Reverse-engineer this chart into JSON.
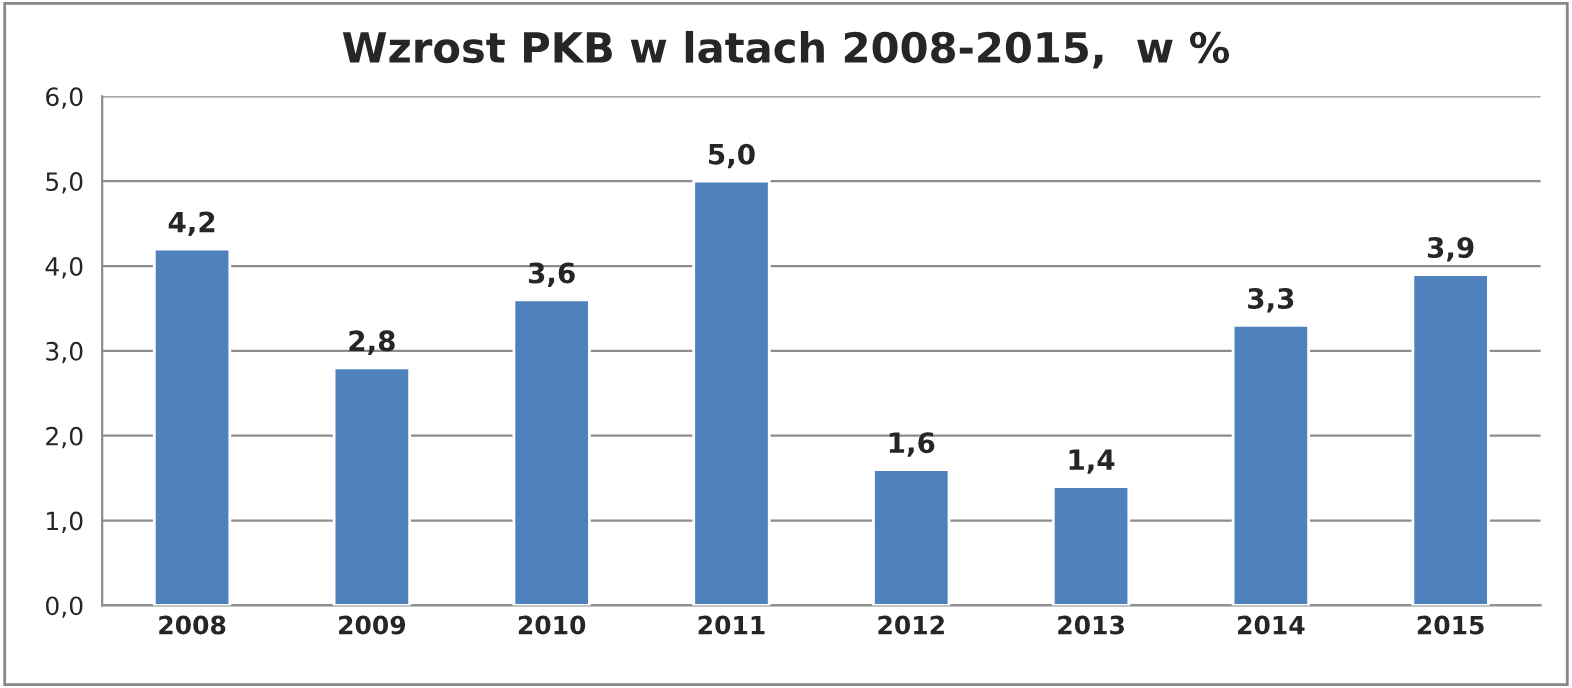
{
  "chart_data": {
    "type": "bar",
    "title": "Wzrost PKB w latach 2008-2015,  w %",
    "categories": [
      "2008",
      "2009",
      "2010",
      "2011",
      "2012",
      "2013",
      "2014",
      "2015"
    ],
    "values": [
      4.2,
      2.8,
      3.6,
      5.0,
      1.6,
      1.4,
      3.3,
      3.9
    ],
    "value_labels": [
      "4,2",
      "2,8",
      "3,6",
      "5,0",
      "1,6",
      "1,4",
      "3,3",
      "3,9"
    ],
    "color": "#4f81bd",
    "ylim": [
      0,
      6
    ],
    "yticks": [
      {
        "value": 0,
        "label": "0,0"
      },
      {
        "value": 1,
        "label": "1,0"
      },
      {
        "value": 2,
        "label": "2,0"
      },
      {
        "value": 3,
        "label": "3,0"
      },
      {
        "value": 4,
        "label": "4,0"
      },
      {
        "value": 5,
        "label": "5,0"
      },
      {
        "value": 6,
        "label": "6,0"
      }
    ],
    "grid": "y"
  }
}
